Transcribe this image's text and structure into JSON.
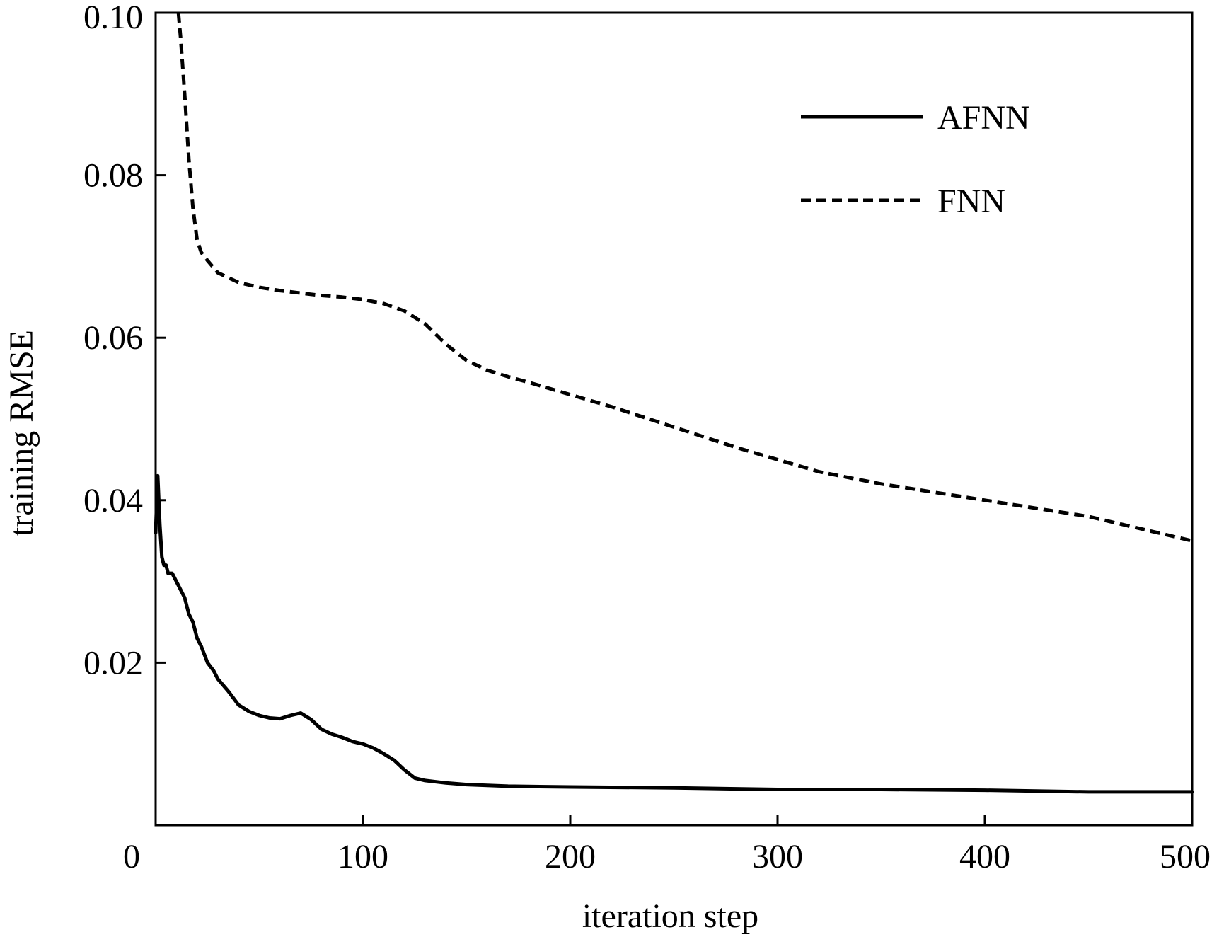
{
  "chart_data": {
    "type": "line",
    "title": "",
    "xlabel": "iteration step",
    "ylabel": "training RMSE",
    "xlim": [
      0,
      500
    ],
    "ylim": [
      0,
      0.1
    ],
    "x_ticks": [
      0,
      100,
      200,
      300,
      400,
      500
    ],
    "x_tick_labels": [
      "0",
      "100",
      "200",
      "300",
      "400",
      "500"
    ],
    "y_ticks": [
      0.02,
      0.04,
      0.06,
      0.08,
      0.1
    ],
    "y_tick_labels": [
      "0.02",
      "0.04",
      "0.06",
      "0.08",
      "0.10"
    ],
    "grid": false,
    "legend_position": "top-right",
    "series": [
      {
        "name": "AFNN",
        "style": "solid",
        "color": "#000000",
        "x": [
          0,
          1,
          2,
          3,
          4,
          5,
          6,
          8,
          10,
          12,
          14,
          16,
          18,
          20,
          22,
          25,
          28,
          30,
          35,
          40,
          45,
          50,
          55,
          60,
          65,
          70,
          75,
          80,
          85,
          90,
          95,
          100,
          105,
          110,
          115,
          120,
          125,
          130,
          140,
          150,
          170,
          200,
          250,
          300,
          350,
          400,
          450,
          500
        ],
        "y": [
          0.036,
          0.043,
          0.037,
          0.033,
          0.032,
          0.032,
          0.031,
          0.031,
          0.03,
          0.029,
          0.028,
          0.026,
          0.025,
          0.023,
          0.022,
          0.02,
          0.019,
          0.018,
          0.0165,
          0.0148,
          0.014,
          0.0135,
          0.0132,
          0.0131,
          0.0135,
          0.0138,
          0.013,
          0.0118,
          0.0112,
          0.0108,
          0.0103,
          0.01,
          0.0095,
          0.0088,
          0.008,
          0.0068,
          0.0058,
          0.0055,
          0.0052,
          0.005,
          0.0048,
          0.0047,
          0.0046,
          0.0044,
          0.0044,
          0.0043,
          0.0041,
          0.0041
        ]
      },
      {
        "name": "FNN",
        "style": "dashed",
        "color": "#000000",
        "x": [
          11,
          12,
          14,
          16,
          18,
          20,
          22,
          25,
          30,
          40,
          50,
          60,
          70,
          80,
          90,
          100,
          110,
          120,
          130,
          140,
          150,
          160,
          170,
          180,
          200,
          220,
          250,
          280,
          300,
          320,
          350,
          400,
          450,
          500
        ],
        "y": [
          0.1,
          0.097,
          0.09,
          0.082,
          0.076,
          0.072,
          0.0705,
          0.0695,
          0.068,
          0.0668,
          0.0662,
          0.0658,
          0.0655,
          0.0652,
          0.065,
          0.0647,
          0.0642,
          0.0633,
          0.0617,
          0.0592,
          0.0572,
          0.056,
          0.0552,
          0.0545,
          0.053,
          0.0515,
          0.049,
          0.0465,
          0.045,
          0.0435,
          0.042,
          0.04,
          0.038,
          0.035
        ]
      }
    ]
  }
}
